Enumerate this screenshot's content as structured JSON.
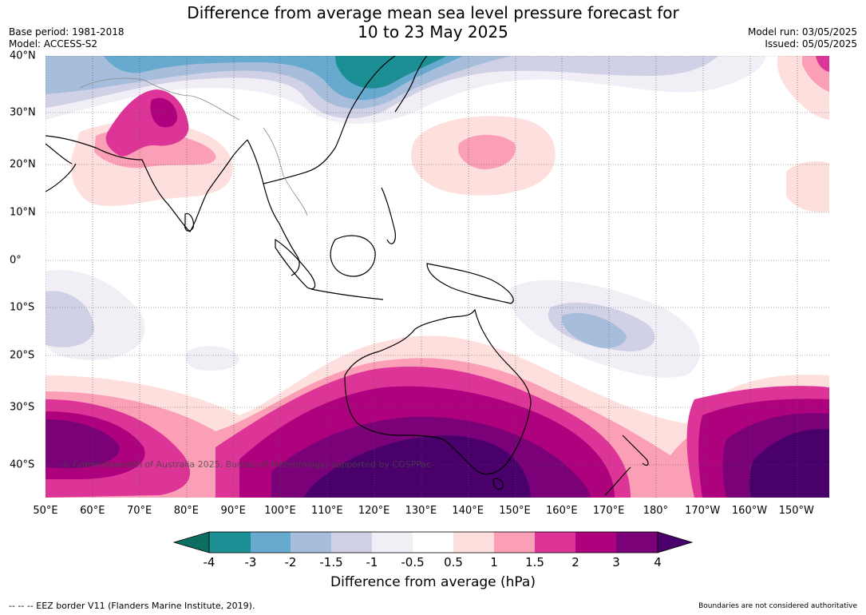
{
  "title": {
    "line1": "Difference from average mean sea level pressure forecast for",
    "line2": "10 to 23 May 2025"
  },
  "meta": {
    "base_period": "Base period: 1981-2018",
    "model": "Model: ACCESS-S2",
    "model_run": "Model run: 03/05/2025",
    "issued": "Issued: 05/05/2025"
  },
  "axes": {
    "lon_labels": [
      "50°E",
      "60°E",
      "70°E",
      "80°E",
      "90°E",
      "100°E",
      "110°E",
      "120°E",
      "130°E",
      "140°E",
      "150°E",
      "160°E",
      "170°E",
      "180°",
      "170°W",
      "160°W",
      "150°W"
    ],
    "lat_labels": [
      "40°N",
      "30°N",
      "20°N",
      "10°N",
      "0°",
      "10°S",
      "20°S",
      "30°S",
      "40°S"
    ]
  },
  "copyright": "© Commonwealth of Australia 2025, Bureau of Meteorology, supported by COSPPac",
  "colorbar": {
    "ticks": [
      "-4",
      "-3",
      "-2",
      "-1.5",
      "-1",
      "-0.5",
      "0.5",
      "1",
      "1.5",
      "2",
      "3",
      "4"
    ],
    "colors": [
      "#1b8f93",
      "#67a9cf",
      "#a6bddb",
      "#d0d1e6",
      "#f1eef6",
      "#ffffff",
      "#fde0dd",
      "#fa9fb5",
      "#dd3497",
      "#ae017e",
      "#7a0177",
      "#49006a"
    ],
    "under_color": "#0b6e60",
    "label": "Difference from average (hPa)"
  },
  "footer": {
    "legend_line": "--  --  -- EEZ border V11 (Flanders Marine Institute, 2019).",
    "note": "Boundaries are not considered authoritative"
  }
}
